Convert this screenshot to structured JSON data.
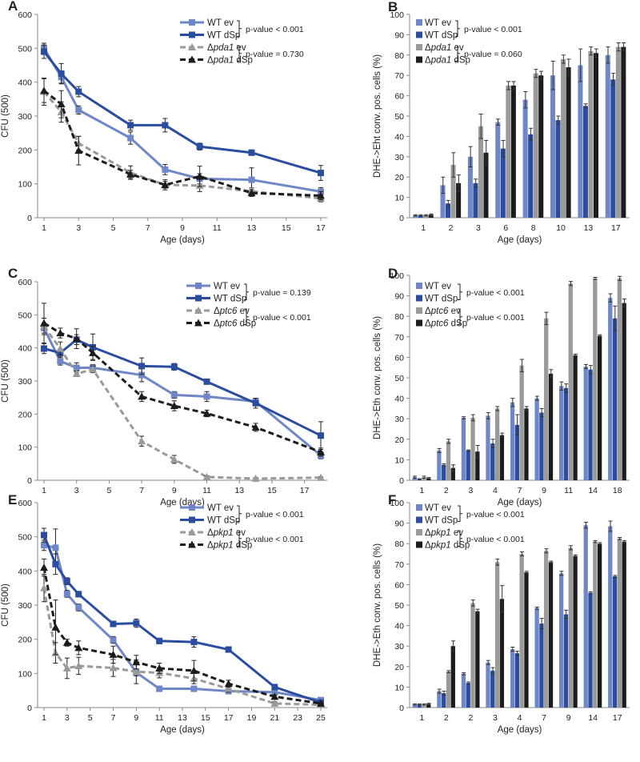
{
  "colors": {
    "wt_ev": "#6f87c6",
    "wt_dsp": "#2b4da0",
    "mut_ev": "#9a9a9a",
    "mut_dsp": "#1c1c1c",
    "axis": "#888888"
  },
  "chart_data": [
    {
      "panel": "A",
      "type": "line",
      "xlabel": "Age (days)",
      "ylabel": "CFU (500)",
      "xlim": [
        1,
        17
      ],
      "xticks": [
        "1",
        "3",
        "5",
        "7",
        "9",
        "11",
        "13",
        "15",
        "17"
      ],
      "xtick_values": [
        1,
        3,
        5,
        7,
        9,
        11,
        13,
        15,
        17
      ],
      "ylim": [
        0,
        600
      ],
      "yticks": [
        "0",
        "100",
        "200",
        "300",
        "400",
        "500",
        "600"
      ],
      "legend": [
        {
          "pre": "WT ev",
          "it": "",
          "post": ""
        },
        {
          "pre": "WT dSp",
          "it": "",
          "post": ""
        },
        {
          "pre": "Δ",
          "it": "pda1",
          "post": " ev"
        },
        {
          "pre": "Δ",
          "it": "pda1",
          "post": " dSp"
        }
      ],
      "pvalues": [
        "p-value < 0.001",
        "p-value =  0.730"
      ],
      "series": [
        {
          "x": [
            1,
            2,
            3,
            6,
            8,
            10,
            13,
            17
          ],
          "y": [
            500,
            415,
            318,
            235,
            142,
            115,
            112,
            77
          ],
          "err": [
            15,
            18,
            12,
            18,
            15,
            15,
            35,
            12
          ]
        },
        {
          "x": [
            1,
            2,
            3,
            6,
            8,
            10,
            13,
            17
          ],
          "y": [
            490,
            425,
            372,
            273,
            273,
            210,
            192,
            132
          ],
          "err": [
            20,
            30,
            15,
            15,
            20,
            10,
            8,
            22
          ]
        },
        {
          "x": [
            1,
            2,
            3,
            6,
            8,
            10,
            13,
            17
          ],
          "y": [
            372,
            312,
            220,
            133,
            97,
            95,
            78,
            57
          ],
          "err": [
            40,
            30,
            20,
            20,
            15,
            18,
            10,
            10
          ]
        },
        {
          "x": [
            1,
            2,
            3,
            6,
            8,
            10,
            13,
            17
          ],
          "y": [
            375,
            335,
            198,
            128,
            97,
            122,
            73,
            65
          ],
          "err": [
            35,
            40,
            42,
            12,
            10,
            30,
            10,
            12
          ]
        }
      ]
    },
    {
      "panel": "B",
      "type": "bar",
      "xlabel": "Age (days)",
      "ylabel": "DHE->Eht conv. pos. cells (%)",
      "categories": [
        "1",
        "2",
        "3",
        "6",
        "8",
        "10",
        "13",
        "17"
      ],
      "ylim": [
        0,
        100
      ],
      "yticks": [
        "0",
        "10",
        "20",
        "30",
        "40",
        "50",
        "60",
        "70",
        "80",
        "90",
        "100"
      ],
      "legend": [
        {
          "pre": "WT ev",
          "it": "",
          "post": ""
        },
        {
          "pre": "WT dSp",
          "it": "",
          "post": ""
        },
        {
          "pre": "Δ",
          "it": "pda1",
          "post": " ev"
        },
        {
          "pre": "Δ",
          "it": "pda1",
          "post": " dSp"
        }
      ],
      "pvalues": [
        "p-value < 0.001",
        "p-value =  0.060"
      ],
      "series": [
        {
          "values": [
            1.2,
            16,
            30,
            47,
            58,
            70,
            75,
            80
          ],
          "err": [
            0.3,
            4,
            5,
            1.5,
            4,
            7,
            8,
            4
          ]
        },
        {
          "values": [
            1.2,
            7,
            17,
            34,
            41,
            48,
            55,
            68
          ],
          "err": [
            0.3,
            1.5,
            2,
            4,
            3,
            2,
            1,
            3
          ]
        },
        {
          "values": [
            1.2,
            26,
            45,
            65,
            71,
            78,
            82,
            84
          ],
          "err": [
            0.3,
            6,
            6,
            2,
            2,
            2,
            2,
            2
          ]
        },
        {
          "values": [
            1.5,
            17,
            32,
            65,
            70,
            74,
            81,
            84
          ],
          "err": [
            0.3,
            4,
            6,
            2,
            2,
            4,
            2,
            2
          ]
        }
      ]
    },
    {
      "panel": "C",
      "type": "line",
      "xlabel": "Age (days)",
      "ylabel": "CFU (500)",
      "xlim": [
        1,
        18
      ],
      "xticks": [
        "1",
        "3",
        "5",
        "7",
        "9",
        "11",
        "13",
        "15",
        "17"
      ],
      "xtick_values": [
        1,
        3,
        5,
        7,
        9,
        11,
        13,
        15,
        17
      ],
      "ylim": [
        0,
        600
      ],
      "yticks": [
        "0",
        "100",
        "200",
        "300",
        "400",
        "500",
        "600"
      ],
      "legend": [
        {
          "pre": "WT ev",
          "it": "",
          "post": ""
        },
        {
          "pre": "WT dSp",
          "it": "",
          "post": ""
        },
        {
          "pre": "Δ",
          "it": "ptc6",
          "post": " ev"
        },
        {
          "pre": "Δ",
          "it": "ptc6",
          "post": " dSp"
        }
      ],
      "pvalues": [
        "p-value = 0.139",
        "p-value < 0.001"
      ],
      "series": [
        {
          "x": [
            1,
            2,
            3,
            4,
            7,
            9,
            11,
            14,
            18
          ],
          "y": [
            460,
            360,
            340,
            340,
            318,
            258,
            253,
            238,
            75
          ],
          "err": [
            15,
            12,
            15,
            10,
            20,
            10,
            15,
            10,
            10
          ]
        },
        {
          "x": [
            1,
            2,
            3,
            4,
            7,
            9,
            11,
            14,
            18
          ],
          "y": [
            398,
            385,
            425,
            402,
            345,
            343,
            298,
            233,
            135
          ],
          "err": [
            15,
            12,
            15,
            40,
            25,
            10,
            5,
            15,
            42
          ]
        },
        {
          "x": [
            1,
            2,
            3,
            4,
            7,
            9,
            11,
            14,
            18
          ],
          "y": [
            465,
            398,
            322,
            335,
            118,
            63,
            10,
            5,
            8
          ],
          "err": [
            25,
            20,
            8,
            10,
            15,
            12,
            3,
            2,
            2
          ]
        },
        {
          "x": [
            1,
            2,
            3,
            4,
            7,
            9,
            11,
            14,
            18
          ],
          "y": [
            475,
            445,
            428,
            385,
            253,
            225,
            202,
            160,
            85
          ],
          "err": [
            60,
            15,
            30,
            20,
            15,
            15,
            10,
            12,
            12
          ]
        }
      ]
    },
    {
      "panel": "D",
      "type": "bar",
      "xlabel": "Age (days)",
      "ylabel": "DHE->Eth conv. pos. cells (%)",
      "categories": [
        "1",
        "2",
        "3",
        "4",
        "7",
        "9",
        "11",
        "14",
        "18"
      ],
      "ylim": [
        0,
        100
      ],
      "yticks": [
        "0",
        "10",
        "20",
        "30",
        "40",
        "50",
        "60",
        "70",
        "80",
        "90",
        "100"
      ],
      "legend": [
        {
          "pre": "WT ev",
          "it": "",
          "post": ""
        },
        {
          "pre": "WT dSp",
          "it": "",
          "post": ""
        },
        {
          "pre": "Δ",
          "it": "ptc6",
          "post": " ev"
        },
        {
          "pre": "Δ",
          "it": "ptc6",
          "post": " dSp"
        }
      ],
      "pvalues": [
        "p-value < 0.001",
        "p-value < 0.001"
      ],
      "series": [
        {
          "values": [
            1.5,
            14.5,
            30.5,
            31.5,
            38,
            40,
            46,
            55.5,
            89
          ],
          "err": [
            0.5,
            1,
            0.5,
            1.5,
            2,
            1,
            2,
            1,
            2
          ]
        },
        {
          "values": [
            0.5,
            7.5,
            14.5,
            18,
            27,
            33,
            45,
            54,
            79
          ],
          "err": [
            0.3,
            0.5,
            0.3,
            2,
            5,
            2,
            2,
            2,
            6
          ]
        },
        {
          "values": [
            1.5,
            19,
            30.5,
            35,
            56,
            79,
            96,
            98.5,
            98.5
          ],
          "err": [
            0.5,
            1,
            1.5,
            1,
            3,
            3,
            1,
            0.5,
            1
          ]
        },
        {
          "values": [
            1,
            6,
            14,
            22,
            35,
            52,
            61,
            70.5,
            86.5
          ],
          "err": [
            0.3,
            1.5,
            3,
            1,
            1,
            2,
            0.5,
            0.5,
            2
          ]
        }
      ]
    },
    {
      "panel": "E",
      "type": "line",
      "xlabel": "Age (days)",
      "ylabel": "CFU (500)",
      "xlim": [
        1,
        25
      ],
      "xticks": [
        "1",
        "3",
        "5",
        "7",
        "9",
        "11",
        "13",
        "15",
        "17",
        "19",
        "21",
        "23",
        "25"
      ],
      "xtick_values": [
        1,
        3,
        5,
        7,
        9,
        11,
        13,
        15,
        17,
        19,
        21,
        23,
        25
      ],
      "ylim": [
        0,
        600
      ],
      "yticks": [
        "0",
        "100",
        "200",
        "300",
        "400",
        "500",
        "600"
      ],
      "legend": [
        {
          "pre": "WT ev",
          "it": "",
          "post": ""
        },
        {
          "pre": "WT dSp",
          "it": "",
          "post": ""
        },
        {
          "pre": "Δ",
          "it": "pkp1",
          "post": " ev"
        },
        {
          "pre": "Δ",
          "it": "pkp1",
          "post": " dSp"
        }
      ],
      "pvalues": [
        "p-value < 0.001",
        "p-value < 0.001"
      ],
      "series": [
        {
          "x": [
            1,
            2,
            3,
            4,
            7,
            9,
            11,
            14,
            17,
            21,
            25
          ],
          "y": [
            475,
            468,
            333,
            293,
            198,
            103,
            55,
            55,
            48,
            45,
            22
          ],
          "err": [
            15,
            55,
            10,
            10,
            10,
            10,
            8,
            8,
            5,
            5,
            5
          ]
        },
        {
          "x": [
            1,
            2,
            3,
            4,
            7,
            9,
            11,
            14,
            17,
            21,
            25
          ],
          "y": [
            505,
            420,
            370,
            332,
            245,
            247,
            195,
            192,
            170,
            60,
            15
          ],
          "err": [
            20,
            30,
            10,
            8,
            8,
            12,
            8,
            15,
            8,
            5,
            5
          ]
        },
        {
          "x": [
            1,
            2,
            3,
            4,
            7,
            9,
            11,
            14,
            17,
            21,
            25
          ],
          "y": [
            350,
            160,
            115,
            122,
            116,
            105,
            102,
            85,
            55,
            12,
            8
          ],
          "err": [
            40,
            30,
            30,
            25,
            25,
            35,
            15,
            15,
            10,
            5,
            5
          ]
        },
        {
          "x": [
            1,
            2,
            3,
            4,
            7,
            9,
            11,
            14,
            17,
            21,
            25
          ],
          "y": [
            410,
            235,
            190,
            175,
            155,
            133,
            115,
            108,
            70,
            32,
            12
          ],
          "err": [
            25,
            80,
            10,
            20,
            25,
            20,
            15,
            30,
            10,
            5,
            5
          ]
        }
      ]
    },
    {
      "panel": "F",
      "type": "bar",
      "xlabel": "Age (days)",
      "ylabel": "DHE->Eth conv. pos. cells (%)",
      "categories": [
        "1",
        "2",
        "2",
        "3",
        "4",
        "7",
        "9",
        "14",
        "17"
      ],
      "ylim": [
        0,
        100
      ],
      "yticks": [
        "0",
        "10",
        "20",
        "30",
        "40",
        "50",
        "60",
        "70",
        "80",
        "90",
        "100"
      ],
      "legend": [
        {
          "pre": "WT ev",
          "it": "",
          "post": ""
        },
        {
          "pre": "WT dSp",
          "it": "",
          "post": ""
        },
        {
          "pre": "Δ",
          "it": "pkp1",
          "post": " ev"
        },
        {
          "pre": "Δ",
          "it": "pkp1",
          "post": " dSp"
        }
      ],
      "pvalues": [
        "p-value < 0.001",
        "p-value < 0.001"
      ],
      "series": [
        {
          "values": [
            1.5,
            8,
            16.5,
            22,
            28.5,
            48.5,
            65.5,
            89,
            88.5
          ],
          "err": [
            0.3,
            1,
            0.5,
            1,
            1,
            0.5,
            1,
            1.5,
            2.5
          ]
        },
        {
          "values": [
            1.5,
            7,
            12,
            18,
            26.5,
            41,
            45.5,
            56,
            64
          ],
          "err": [
            0.3,
            1,
            0.5,
            1.5,
            1,
            2.5,
            2,
            0.5,
            0.5
          ]
        },
        {
          "values": [
            1.5,
            17.5,
            51,
            71,
            75,
            76.5,
            78,
            81,
            82.5
          ],
          "err": [
            0.3,
            0.5,
            1.5,
            1.5,
            1,
            1,
            1,
            0.5,
            0.5
          ]
        },
        {
          "values": [
            1.8,
            30,
            47,
            53,
            66,
            71,
            74,
            80,
            81
          ],
          "err": [
            0.3,
            2.5,
            1,
            6.5,
            0.5,
            0.5,
            0.5,
            0.5,
            0.5
          ]
        }
      ]
    }
  ]
}
